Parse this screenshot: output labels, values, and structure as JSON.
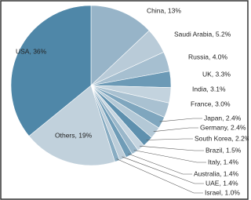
{
  "chart_data": {
    "type": "pie",
    "values": [
      13,
      5.2,
      4.0,
      3.3,
      3.1,
      3.0,
      2.4,
      2.4,
      2.2,
      1.5,
      1.4,
      1.4,
      1.4,
      1.0,
      19,
      36
    ],
    "value_labels": [
      "China, 13%",
      "Saudi Arabia, 5.2%",
      "Russia, 4.0%",
      "UK, 3.3%",
      "India, 3.1%",
      "France, 3.0%",
      "Japan, 2.4%",
      "Germany, 2.4%",
      "South Korea, 2.2%",
      "Brazil, 1.5%",
      "Italy, 1.4%",
      "Australia, 1.4%",
      "UAE, 1.4%",
      "Israel, 1.0%",
      "Others, 19%",
      "USA, 36%"
    ],
    "colors": [
      "#97b4c8",
      "#b9cbd8",
      "#a6bfd0",
      "#6c9ab6",
      "#c3d3de",
      "#a9c1d1",
      "#7fa6be",
      "#b3c8d6",
      "#5e90ae",
      "#c6d5e0",
      "#9ab7ca",
      "#6f9cb7",
      "#bccdd9",
      "#88acc2",
      "#c1d1dc",
      "#4f87a8"
    ]
  }
}
